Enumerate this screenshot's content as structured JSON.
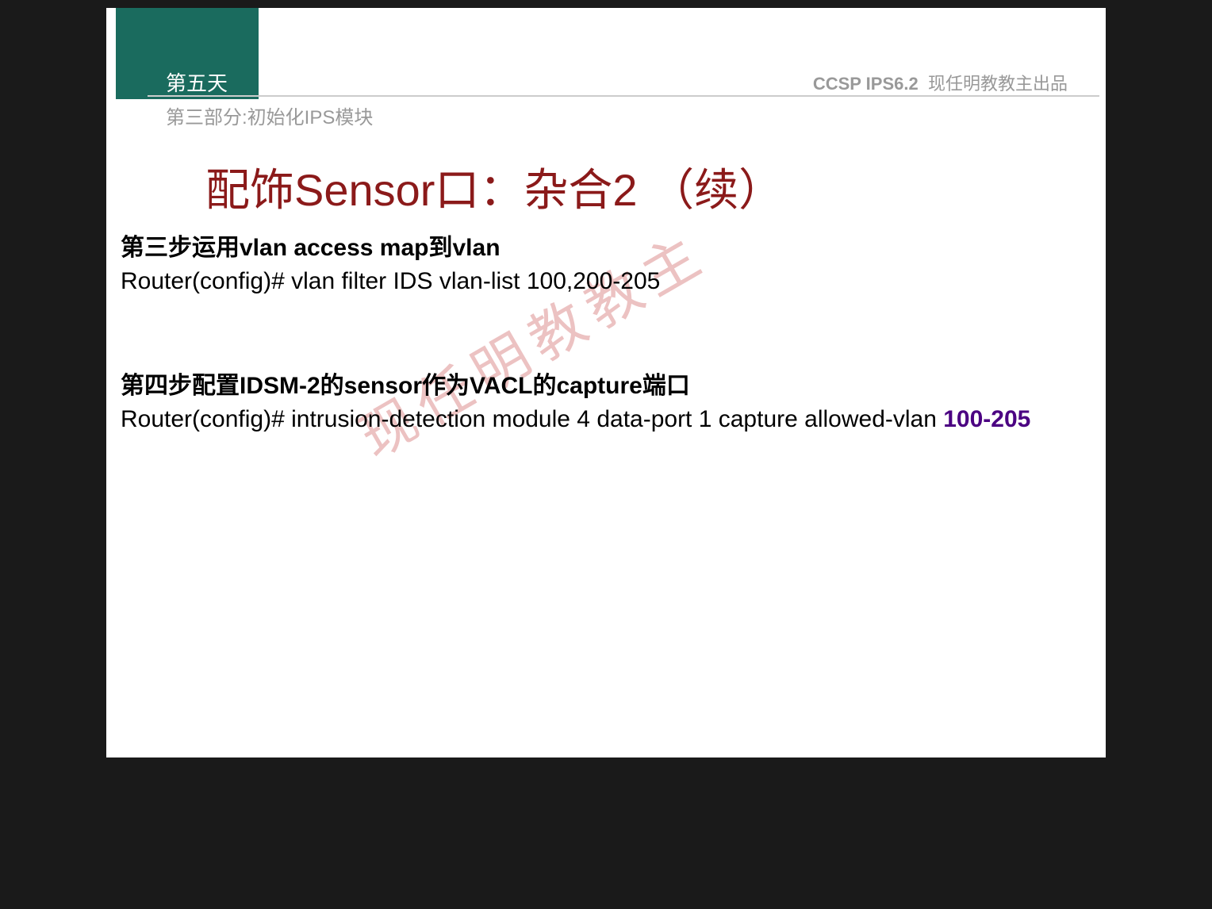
{
  "colors": {
    "header_block": "#1a6b5e",
    "slide_bg": "#ffffff",
    "outer_bg": "#1a1a1a",
    "title_color": "#8b1a1a",
    "muted_text": "#999999",
    "body_text": "#000000",
    "highlight": "#4b0082",
    "watermark": "rgba(200,80,80,0.35)",
    "divider": "#cccccc"
  },
  "typography": {
    "title_fontsize": 56,
    "body_fontsize": 30,
    "header_fontsize": 26,
    "section_fontsize": 24,
    "course_fontsize": 22,
    "watermark_fontsize": 70
  },
  "header": {
    "day": "第五天",
    "section": "第三部分:初始化IPS模块",
    "course_bold": "CCSP IPS6.2",
    "course_rest": "现任明教教主出品"
  },
  "title": "配饰Sensor口：杂合2 （续）",
  "watermark": "现任明教教主",
  "step3": {
    "heading": "第三步运用vlan access map到vlan",
    "cmd": "Router(config)# vlan filter IDS vlan-list 100,200-205"
  },
  "step4": {
    "heading": "第四步配置IDSM-2的sensor作为VACL的capture端口",
    "cmd_part1": "Router(config)# intrusion-detection module 4 data-port 1 capture allowed-vlan ",
    "cmd_highlight": "100-205"
  }
}
